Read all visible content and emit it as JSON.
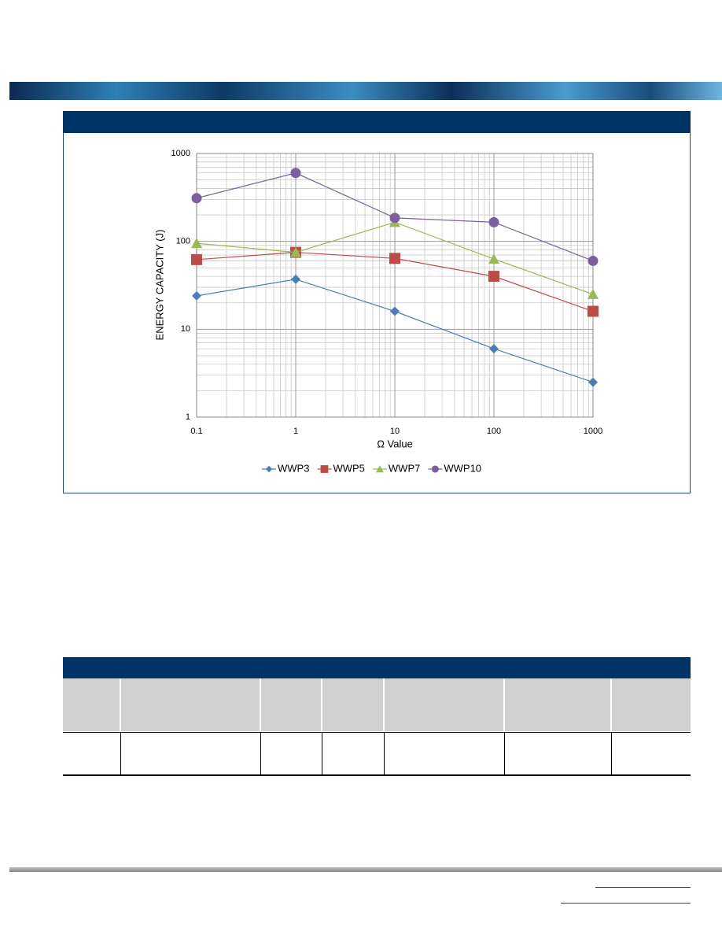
{
  "chart_data": {
    "type": "line",
    "xlabel": "Ω Value",
    "ylabel": "ENERGY CAPACITY (J)",
    "x": [
      0.1,
      1,
      10,
      100,
      1000
    ],
    "xlim": [
      0.1,
      1000
    ],
    "xticks": [
      0.1,
      1,
      10,
      100,
      1000
    ],
    "ylim": [
      1,
      1000
    ],
    "yticks": [
      1,
      10,
      100,
      1000
    ],
    "xscale": "log",
    "yscale": "log",
    "grid": true,
    "legend": "bottom",
    "series": [
      {
        "name": "WWP3",
        "color": "#4a7ebb",
        "marker": "diamond",
        "values": [
          24,
          37,
          16,
          6,
          2.5
        ]
      },
      {
        "name": "WWP5",
        "color": "#be4b48",
        "marker": "square",
        "values": [
          62,
          75,
          64,
          40,
          16
        ]
      },
      {
        "name": "WWP7",
        "color": "#98b954",
        "marker": "triangle",
        "values": [
          95,
          75,
          165,
          63,
          25
        ]
      },
      {
        "name": "WWP10",
        "color": "#7d5fa0",
        "marker": "circle",
        "values": [
          310,
          600,
          185,
          165,
          60
        ]
      }
    ]
  }
}
